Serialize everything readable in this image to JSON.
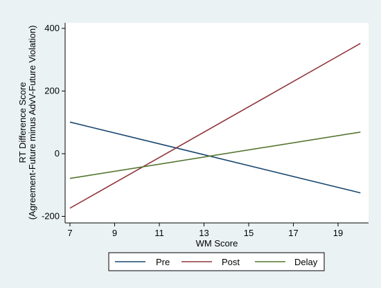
{
  "chart_data": {
    "type": "line",
    "xlabel": "WM Score",
    "ylabel_lines": [
      "RT Difference Score",
      "(Agreement-Future minus AdvV-Future Violation)"
    ],
    "xlim": [
      7,
      20
    ],
    "ylim": [
      -215,
      420
    ],
    "x_ticks": [
      7,
      9,
      11,
      13,
      15,
      17,
      19
    ],
    "y_ticks": [
      -200,
      0,
      200,
      400
    ],
    "grid": false,
    "legend_position": "bottom",
    "series": [
      {
        "name": "Pre",
        "color": "#1a476f",
        "x": [
          7,
          20
        ],
        "values": [
          101,
          -125
        ]
      },
      {
        "name": "Post",
        "color": "#90353b",
        "x": [
          7,
          20
        ],
        "values": [
          -174,
          352
        ]
      },
      {
        "name": "Delay",
        "color": "#55752f",
        "x": [
          7,
          20
        ],
        "values": [
          -79,
          69
        ]
      }
    ]
  }
}
